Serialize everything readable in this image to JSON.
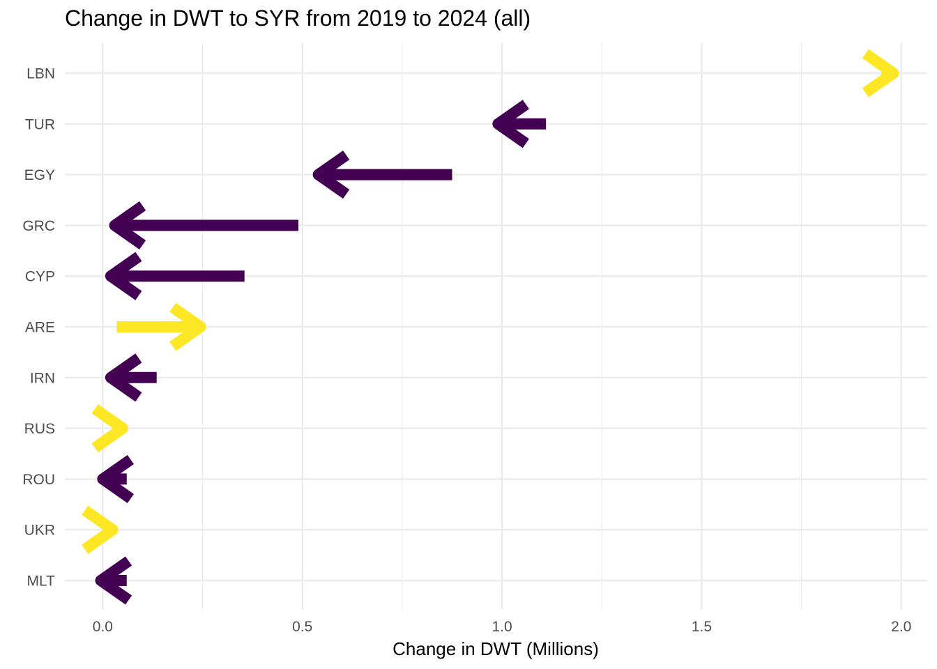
{
  "chart_data": {
    "type": "arrow",
    "title": "Change in DWT to SYR from 2019 to 2024 (all)",
    "xlabel": "Change in DWT (Millions)",
    "ylabel": "",
    "xlim": [
      -0.095,
      2.065
    ],
    "x_ticks": [
      0.0,
      0.5,
      1.0,
      1.5,
      2.0
    ],
    "x_tick_labels": [
      "0.0",
      "0.5",
      "1.0",
      "1.5",
      "2.0"
    ],
    "grid": true,
    "colors": {
      "increase": "#fde725",
      "decrease": "#440154",
      "grid": "#ebebeb",
      "tick_text": "#4d4d4d"
    },
    "categories": [
      "LBN",
      "TUR",
      "EGY",
      "GRC",
      "CYP",
      "ARE",
      "IRN",
      "RUS",
      "ROU",
      "UKR",
      "MLT"
    ],
    "series": [
      {
        "category": "LBN",
        "from": 1.95,
        "to": 1.98,
        "direction": "increase"
      },
      {
        "category": "TUR",
        "from": 1.11,
        "to": 0.99,
        "direction": "decrease"
      },
      {
        "category": "EGY",
        "from": 0.875,
        "to": 0.54,
        "direction": "decrease"
      },
      {
        "category": "GRC",
        "from": 0.49,
        "to": 0.03,
        "direction": "decrease"
      },
      {
        "category": "CYP",
        "from": 0.355,
        "to": 0.02,
        "direction": "decrease"
      },
      {
        "category": "ARE",
        "from": 0.035,
        "to": 0.245,
        "direction": "increase"
      },
      {
        "category": "IRN",
        "from": 0.135,
        "to": 0.02,
        "direction": "decrease"
      },
      {
        "category": "RUS",
        "from": 0.04,
        "to": 0.05,
        "direction": "increase"
      },
      {
        "category": "ROU",
        "from": 0.06,
        "to": 0.0,
        "direction": "decrease"
      },
      {
        "category": "UKR",
        "from": 0.015,
        "to": 0.025,
        "direction": "increase"
      },
      {
        "category": "MLT",
        "from": 0.06,
        "to": -0.005,
        "direction": "decrease"
      }
    ]
  }
}
